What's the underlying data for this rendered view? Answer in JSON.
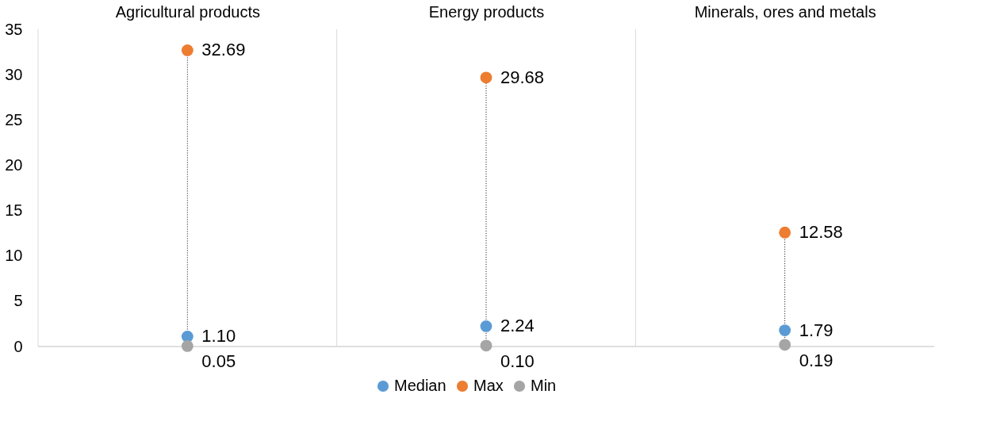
{
  "chart_data": {
    "type": "scatter",
    "categories": [
      "Agricultural products",
      "Energy products",
      "Minerals, ores and metals"
    ],
    "series": [
      {
        "name": "Median",
        "color": "#5b9bd5",
        "values": [
          1.1,
          2.24,
          1.79
        ],
        "value_labels": [
          "1.10",
          "2.24",
          "1.79"
        ]
      },
      {
        "name": "Max",
        "color": "#ed7d31",
        "values": [
          32.69,
          29.68,
          12.58
        ],
        "value_labels": [
          "32.69",
          "29.68",
          "12.58"
        ]
      },
      {
        "name": "Min",
        "color": "#a5a5a5",
        "values": [
          0.05,
          0.1,
          0.19
        ],
        "value_labels": [
          "0.05",
          "0.10",
          "0.19"
        ]
      }
    ],
    "ylim": [
      0,
      35
    ],
    "yticks": [
      0,
      5,
      10,
      15,
      20,
      25,
      30,
      35
    ],
    "grid": "x",
    "legend": "bottom",
    "marker": "circle",
    "line_style": "dotted"
  }
}
